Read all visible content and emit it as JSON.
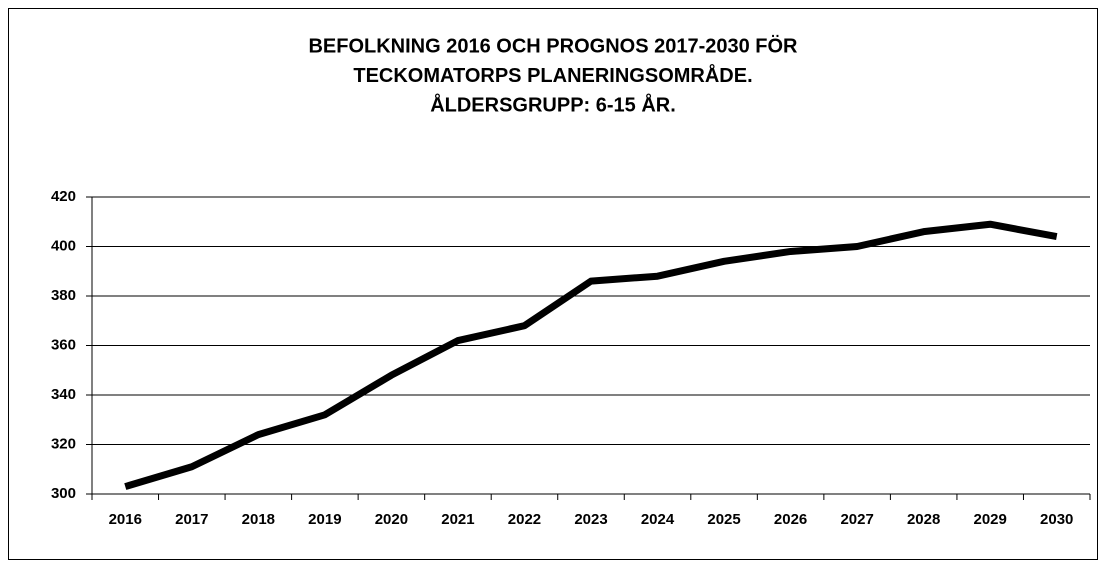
{
  "chart_data": {
    "type": "line",
    "title": [
      "BEFOLKNING 2016 OCH PROGNOS 2017-2030 FÖR",
      "TECKOMATORPS PLANERINGSOMRÅDE.",
      "ÅLDERSGRUPP: 6-15 ÅR."
    ],
    "categories": [
      "2016",
      "2017",
      "2018",
      "2019",
      "2020",
      "2021",
      "2022",
      "2023",
      "2024",
      "2025",
      "2026",
      "2027",
      "2028",
      "2029",
      "2030"
    ],
    "values": [
      303,
      311,
      324,
      332,
      348,
      362,
      368,
      386,
      388,
      394,
      398,
      400,
      406,
      409,
      404
    ],
    "color": "#000000",
    "ylim": [
      300,
      420
    ],
    "yticks": [
      300,
      320,
      340,
      360,
      380,
      400,
      420
    ],
    "grid": true
  }
}
